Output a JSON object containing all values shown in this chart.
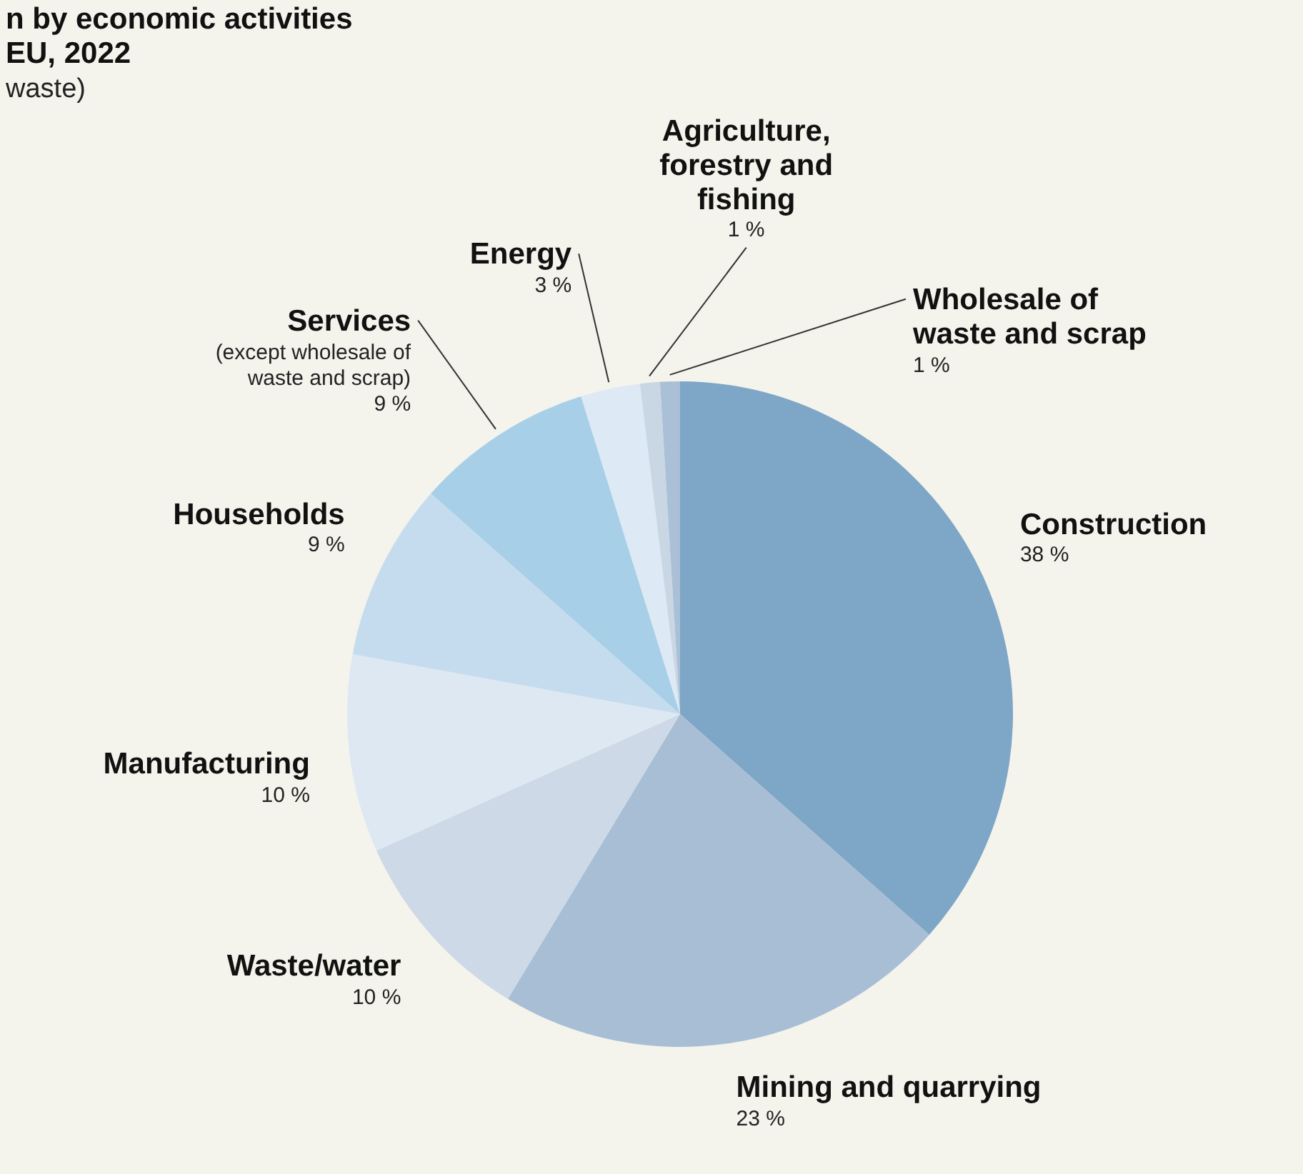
{
  "chart_data": {
    "type": "pie",
    "title": "n by economic activities\nEU, 2022",
    "subtitle": "waste)",
    "categories": [
      "Construction",
      "Mining and quarrying",
      "Waste/water",
      "Manufacturing",
      "Households",
      "Services",
      "Energy",
      "Agriculture, forestry and fishing",
      "Wholesale of waste and scrap"
    ],
    "values": [
      38,
      23,
      10,
      10,
      9,
      9,
      3,
      1,
      1
    ],
    "annotations": [
      {
        "text": "(except wholesale of waste and scrap)",
        "x": "Services"
      }
    ],
    "value_labels": [
      "38 %",
      "23 %",
      "10 %",
      "10 %",
      "9 %",
      "9 %",
      "3 %",
      "1 %",
      "1 %"
    ],
    "colors": [
      "#7ea6c6",
      "#a7bed5",
      "#cdd9e6",
      "#dde8f3",
      "#c5dcef",
      "#a7cfe8",
      "#dde9f4",
      "#c9d6e4",
      "#a9c0d6"
    ]
  }
}
